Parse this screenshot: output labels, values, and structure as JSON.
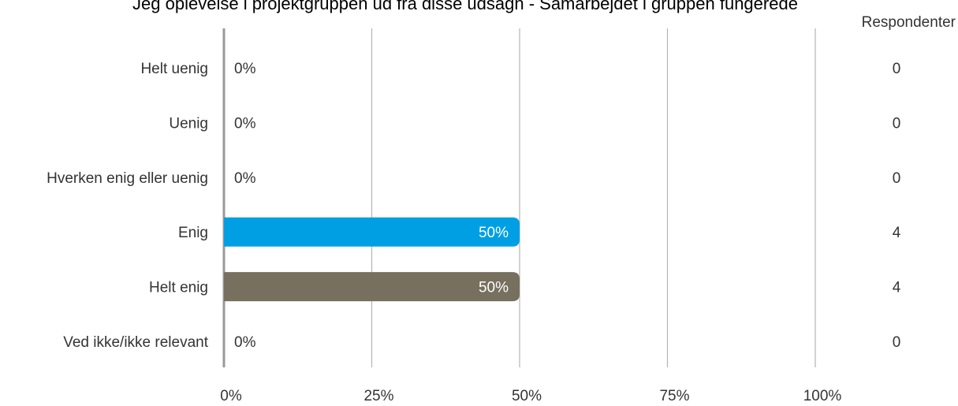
{
  "chart_data": {
    "type": "bar",
    "orientation": "horizontal",
    "title": "Jeg oplevelse i projektgruppen ud fra disse udsagn - Samarbejdet i gruppen fungerede",
    "respondents_header": "Respondenter",
    "categories": [
      "Helt uenig",
      "Uenig",
      "Hverken enig eller uenig",
      "Enig",
      "Helt enig",
      "Ved ikke/ikke relevant"
    ],
    "values": [
      0,
      0,
      0,
      50,
      50,
      0
    ],
    "value_labels": [
      "0%",
      "0%",
      "0%",
      "50%",
      "50%",
      "0%"
    ],
    "counts": [
      0,
      0,
      0,
      4,
      4,
      0
    ],
    "bar_colors": [
      "#009fe3",
      "#009fe3",
      "#009fe3",
      "#009fe3",
      "#77705f",
      "#009fe3"
    ],
    "xlim": [
      0,
      100
    ],
    "xticks": [
      0,
      25,
      50,
      75,
      100
    ],
    "xtick_labels": [
      "0%",
      "25%",
      "50%",
      "75%",
      "100%"
    ],
    "grid": true,
    "gridline_color": "#b3b3b3",
    "axis_color": "#999999"
  }
}
